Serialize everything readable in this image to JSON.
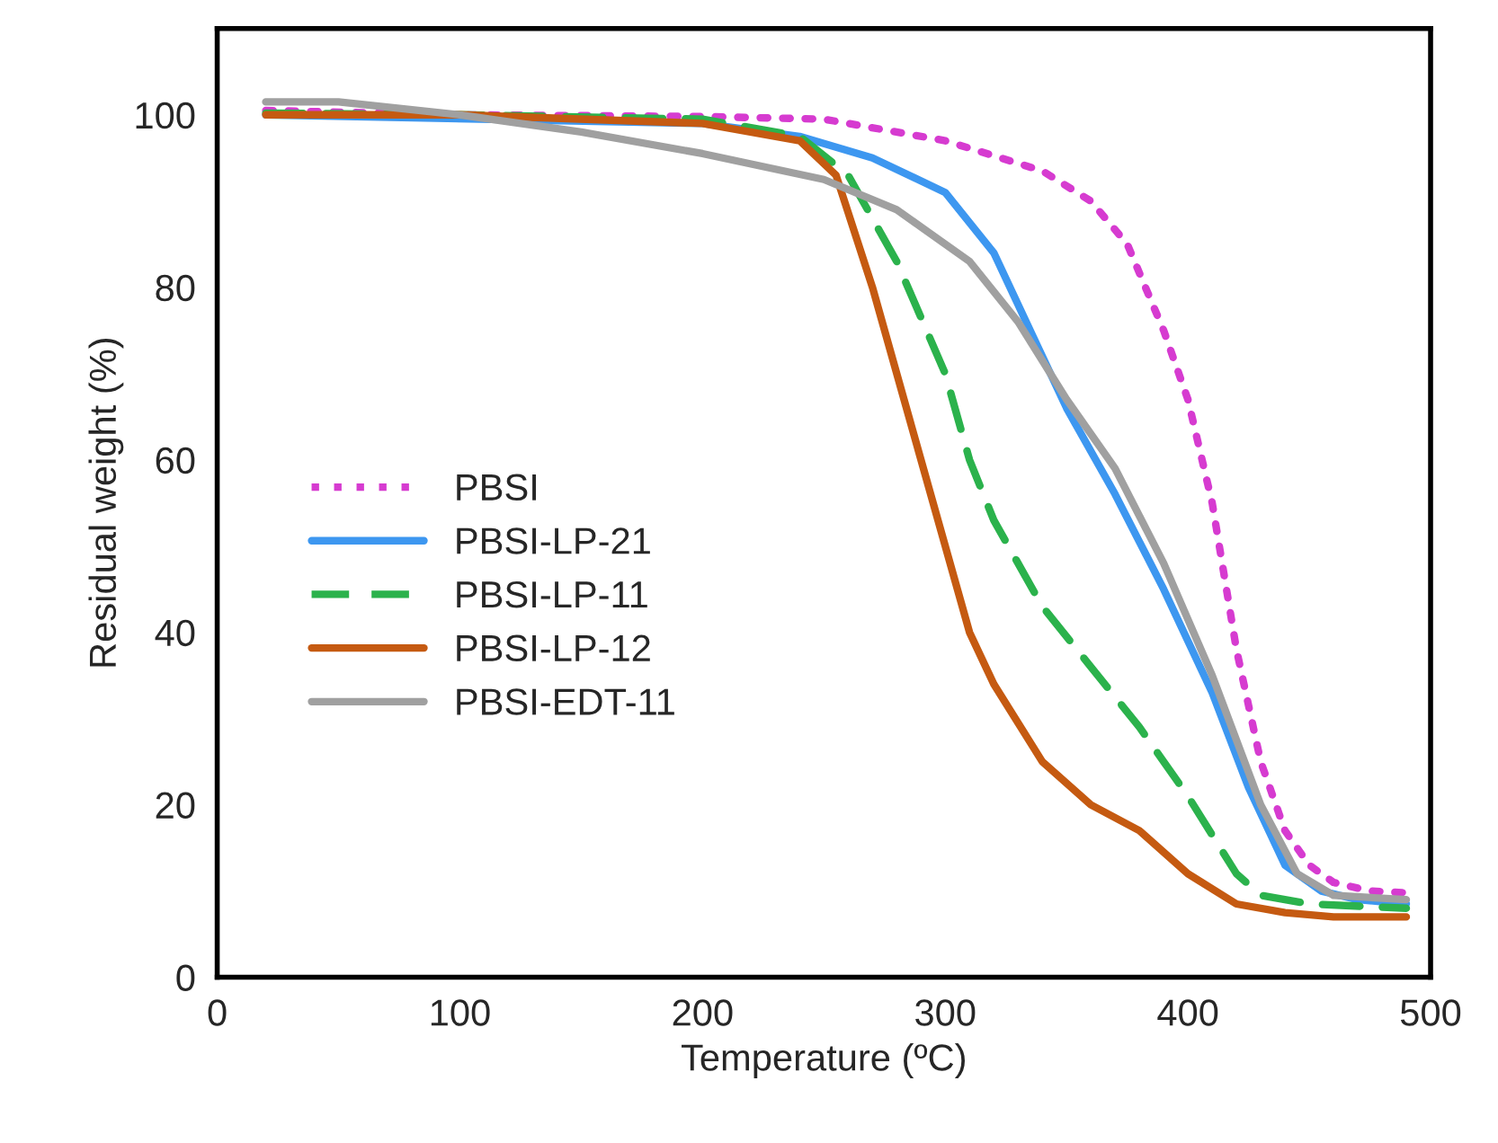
{
  "chart_data": {
    "type": "line",
    "xlabel": "Temperature (ºC)",
    "ylabel": "Residual weight (%)",
    "xlim": [
      0,
      500
    ],
    "ylim": [
      0,
      110
    ],
    "xticks": [
      0,
      100,
      200,
      300,
      400,
      500
    ],
    "yticks": [
      0,
      20,
      40,
      60,
      80,
      100
    ],
    "grid": false,
    "legend": "center left",
    "marker": "none",
    "series": [
      {
        "name": "PBSI",
        "color": "#d63bd0",
        "line_style": "dotted",
        "x": [
          20,
          100,
          200,
          250,
          300,
          340,
          360,
          375,
          390,
          400,
          410,
          420,
          430,
          440,
          450,
          460,
          475,
          490
        ],
        "values": [
          100.5,
          100,
          99.8,
          99.5,
          97,
          93.5,
          90,
          85,
          75,
          67,
          55,
          38,
          25,
          17,
          13,
          11,
          10,
          9.8
        ]
      },
      {
        "name": "PBSI-LP-21",
        "color": "#3d97f0",
        "line_style": "solid",
        "x": [
          20,
          200,
          240,
          270,
          300,
          320,
          335,
          350,
          370,
          390,
          410,
          425,
          440,
          455,
          470,
          490
        ],
        "values": [
          100,
          99,
          97.5,
          95,
          91,
          84,
          75,
          66,
          56,
          45,
          33,
          22,
          13,
          10,
          9,
          8.5
        ]
      },
      {
        "name": "PBSI-LP-11",
        "color": "#2bb24c",
        "line_style": "dashed",
        "x": [
          20,
          100,
          200,
          240,
          260,
          280,
          300,
          310,
          320,
          340,
          360,
          380,
          400,
          420,
          430,
          450,
          490
        ],
        "values": [
          100.2,
          100,
          99.5,
          97.5,
          93,
          83,
          70,
          60,
          53,
          43,
          36,
          29,
          21,
          12,
          9.5,
          8.5,
          8
        ]
      },
      {
        "name": "PBSI-LP-12",
        "color": "#c55a11",
        "line_style": "solid",
        "x": [
          20,
          100,
          200,
          240,
          255,
          270,
          285,
          300,
          310,
          320,
          340,
          360,
          380,
          400,
          420,
          440,
          460,
          490
        ],
        "values": [
          100,
          100,
          99,
          97,
          93,
          80,
          65,
          50,
          40,
          34,
          25,
          20,
          17,
          12,
          8.5,
          7.5,
          7,
          7
        ]
      },
      {
        "name": "PBSI-EDT-11",
        "color": "#a0a0a0",
        "line_style": "solid",
        "x": [
          20,
          50,
          100,
          150,
          200,
          250,
          280,
          310,
          330,
          350,
          370,
          390,
          410,
          430,
          445,
          460,
          490
        ],
        "values": [
          101.5,
          101.5,
          100,
          98,
          95.5,
          92.5,
          89,
          83,
          76,
          67,
          59,
          48,
          35,
          20,
          12,
          9.5,
          9
        ]
      }
    ]
  }
}
